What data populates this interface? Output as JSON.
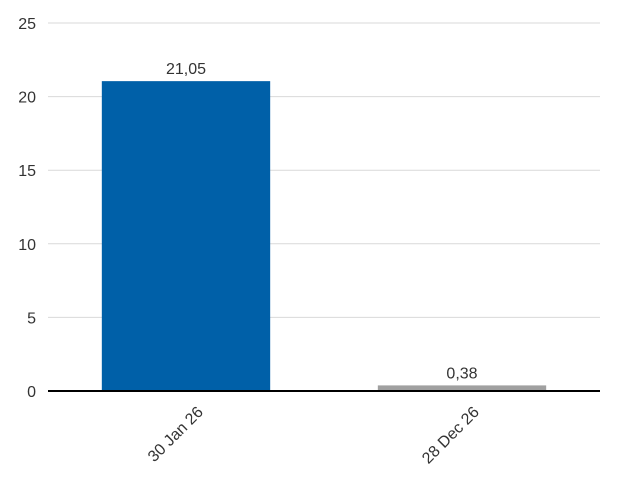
{
  "chart_data": {
    "type": "bar",
    "categories": [
      "30 Jan 26",
      "28 Dec 26"
    ],
    "values": [
      21.05,
      0.38
    ],
    "value_labels": [
      "21,05",
      "0,38"
    ],
    "bar_colors": [
      "#0060a8",
      "#a0a0a0"
    ],
    "ylim": [
      0,
      25
    ],
    "yticks": [
      0,
      5,
      10,
      15,
      20,
      25
    ],
    "ytick_labels": [
      "0",
      "5",
      "10",
      "15",
      "20",
      "25"
    ],
    "grid": true,
    "legend": "none",
    "title": "",
    "xlabel": "",
    "ylabel": ""
  }
}
